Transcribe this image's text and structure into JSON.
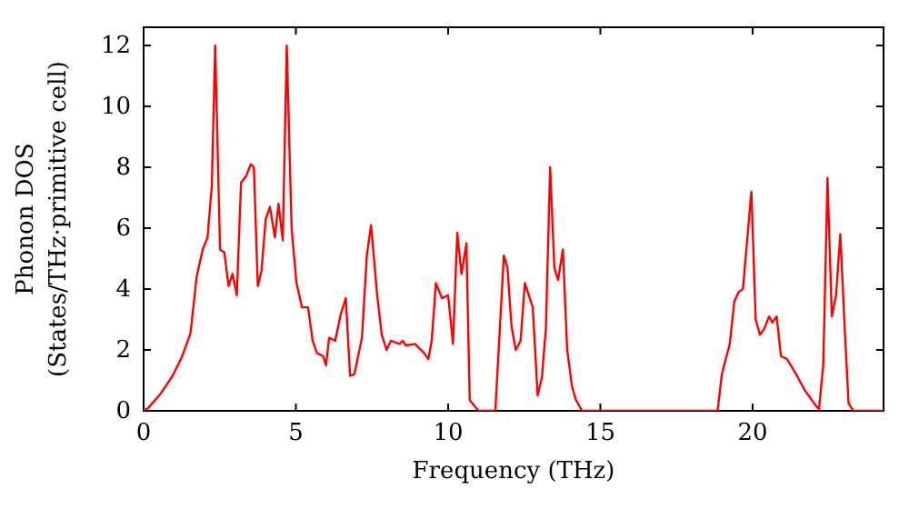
{
  "chart_data": {
    "type": "line",
    "xlabel": "Frequency (THz)",
    "ylabel": "Phonon DOS\n(States/THz·primitive cell)",
    "xlim": [
      0,
      24.3
    ],
    "ylim": [
      0,
      12.6
    ],
    "xticks": [
      0,
      5,
      10,
      15,
      20
    ],
    "yticks": [
      0,
      2,
      4,
      6,
      8,
      10,
      12
    ],
    "grid": false,
    "marker": "none",
    "line_style": "solid",
    "series": [
      {
        "color": "#ff0000",
        "x": [
          0,
          0.16,
          0.55,
          0.95,
          1.25,
          1.54,
          1.74,
          1.94,
          2.1,
          2.24,
          2.35,
          2.51,
          2.65,
          2.79,
          2.92,
          3.06,
          3.2,
          3.36,
          3.52,
          3.62,
          3.75,
          3.87,
          4.01,
          4.15,
          4.31,
          4.43,
          4.57,
          4.7,
          4.86,
          5.02,
          5.2,
          5.4,
          5.55,
          5.69,
          5.89,
          5.99,
          6.09,
          6.29,
          6.48,
          6.64,
          6.78,
          6.92,
          7.17,
          7.33,
          7.47,
          7.67,
          7.82,
          7.98,
          8.12,
          8.41,
          8.51,
          8.61,
          8.91,
          9.21,
          9.35,
          9.46,
          9.6,
          9.8,
          10,
          10.16,
          10.3,
          10.44,
          10.6,
          10.71,
          11,
          11.55,
          11.83,
          11.95,
          12.08,
          12.22,
          12.38,
          12.52,
          12.78,
          12.94,
          13.08,
          13.21,
          13.35,
          13.49,
          13.61,
          13.77,
          13.91,
          14.07,
          14.2,
          14.4,
          18.85,
          18.99,
          19.25,
          19.4,
          19.54,
          19.68,
          19.96,
          20.1,
          20.24,
          20.38,
          20.54,
          20.65,
          20.79,
          20.93,
          21.13,
          21.43,
          21.73,
          22.02,
          22.18,
          22.32,
          22.46,
          22.6,
          22.74,
          22.88,
          23.02,
          23.15,
          23.31,
          24.3
        ],
        "values": [
          0,
          0.1,
          0.55,
          1.15,
          1.75,
          2.55,
          4.4,
          5.3,
          5.7,
          7.4,
          12,
          5.3,
          5.2,
          4.1,
          4.5,
          3.8,
          7.5,
          7.7,
          8.1,
          8,
          4.1,
          4.6,
          6.3,
          6.7,
          5.7,
          6.8,
          5.6,
          12,
          6,
          4.2,
          3.4,
          3.4,
          2.3,
          1.9,
          1.8,
          1.5,
          2.4,
          2.3,
          3.2,
          3.7,
          1.15,
          1.2,
          2.4,
          5.1,
          6.1,
          3.8,
          2.5,
          2,
          2.3,
          2.2,
          2.3,
          2.15,
          2.2,
          1.9,
          1.7,
          2.3,
          4.2,
          3.7,
          3.8,
          2.2,
          5.85,
          4.5,
          5.5,
          0.35,
          0,
          0,
          5.1,
          4.7,
          2.8,
          2,
          2.3,
          4.2,
          3.4,
          0.5,
          1.1,
          2.7,
          8,
          4.7,
          4.3,
          5.3,
          2,
          0.8,
          0.35,
          0,
          0,
          1.2,
          2.2,
          3.6,
          3.9,
          4,
          7.2,
          3,
          2.5,
          2.7,
          3.1,
          2.9,
          3.1,
          1.8,
          1.7,
          1.2,
          0.65,
          0.25,
          0.05,
          1.5,
          7.65,
          3.1,
          3.8,
          5.8,
          2.8,
          0.25,
          0,
          0
        ]
      }
    ]
  }
}
